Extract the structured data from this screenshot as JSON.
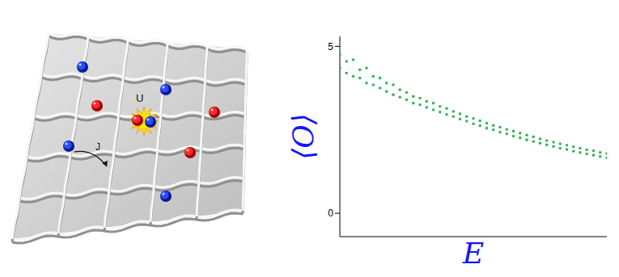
{
  "chart_data": {
    "type": "scatter",
    "x_label": "E",
    "y_label": "⟨O⟩",
    "color": "#3cb35a",
    "xlim": [
      0,
      100
    ],
    "ylim": [
      -0.7,
      5.3
    ],
    "yticks": [
      0,
      5
    ],
    "tick_labels": "y",
    "x": [
      0,
      0,
      2.5,
      2.5,
      5,
      5,
      7.5,
      7.5,
      10,
      10,
      12.5,
      12.5,
      15,
      15,
      17.5,
      17.5,
      20,
      20,
      22.5,
      22.5,
      25,
      25,
      27.5,
      27.5,
      30,
      30,
      32.5,
      32.5,
      35,
      35,
      37.5,
      37.5,
      40,
      40,
      42.5,
      42.5,
      45,
      45,
      47.5,
      47.5,
      50,
      50,
      52.5,
      52.5,
      55,
      55,
      57.5,
      57.5,
      60,
      60,
      62.5,
      62.5,
      65,
      65,
      67.5,
      67.5,
      70,
      70,
      72.5,
      72.5,
      75,
      75,
      77.5,
      77.5,
      80,
      80,
      82.5,
      82.5,
      85,
      85,
      87.5,
      87.5,
      90,
      90,
      92.5,
      92.5,
      95,
      95,
      97.5,
      97.5,
      100,
      100
    ],
    "values": [
      4.75,
      4.35,
      4.55,
      4.2,
      4.6,
      4.1,
      4.3,
      4.05,
      4.35,
      3.9,
      4.1,
      3.85,
      4.05,
      3.75,
      3.9,
      3.65,
      3.85,
      3.55,
      3.7,
      3.48,
      3.62,
      3.4,
      3.5,
      3.3,
      3.45,
      3.25,
      3.35,
      3.17,
      3.3,
      3.1,
      3.2,
      3.03,
      3.14,
      2.96,
      3.05,
      2.9,
      2.98,
      2.82,
      2.9,
      2.76,
      2.84,
      2.68,
      2.77,
      2.62,
      2.7,
      2.55,
      2.63,
      2.5,
      2.58,
      2.43,
      2.51,
      2.38,
      2.46,
      2.31,
      2.4,
      2.26,
      2.34,
      2.2,
      2.29,
      2.15,
      2.23,
      2.1,
      2.18,
      2.05,
      2.13,
      2.0,
      2.08,
      1.95,
      2.04,
      1.91,
      1.99,
      1.86,
      1.95,
      1.82,
      1.9,
      1.78,
      1.87,
      1.74,
      1.82,
      1.7,
      1.79,
      1.66
    ]
  },
  "diagram": {
    "labels": {
      "interaction": "U",
      "hopping": "J"
    }
  }
}
